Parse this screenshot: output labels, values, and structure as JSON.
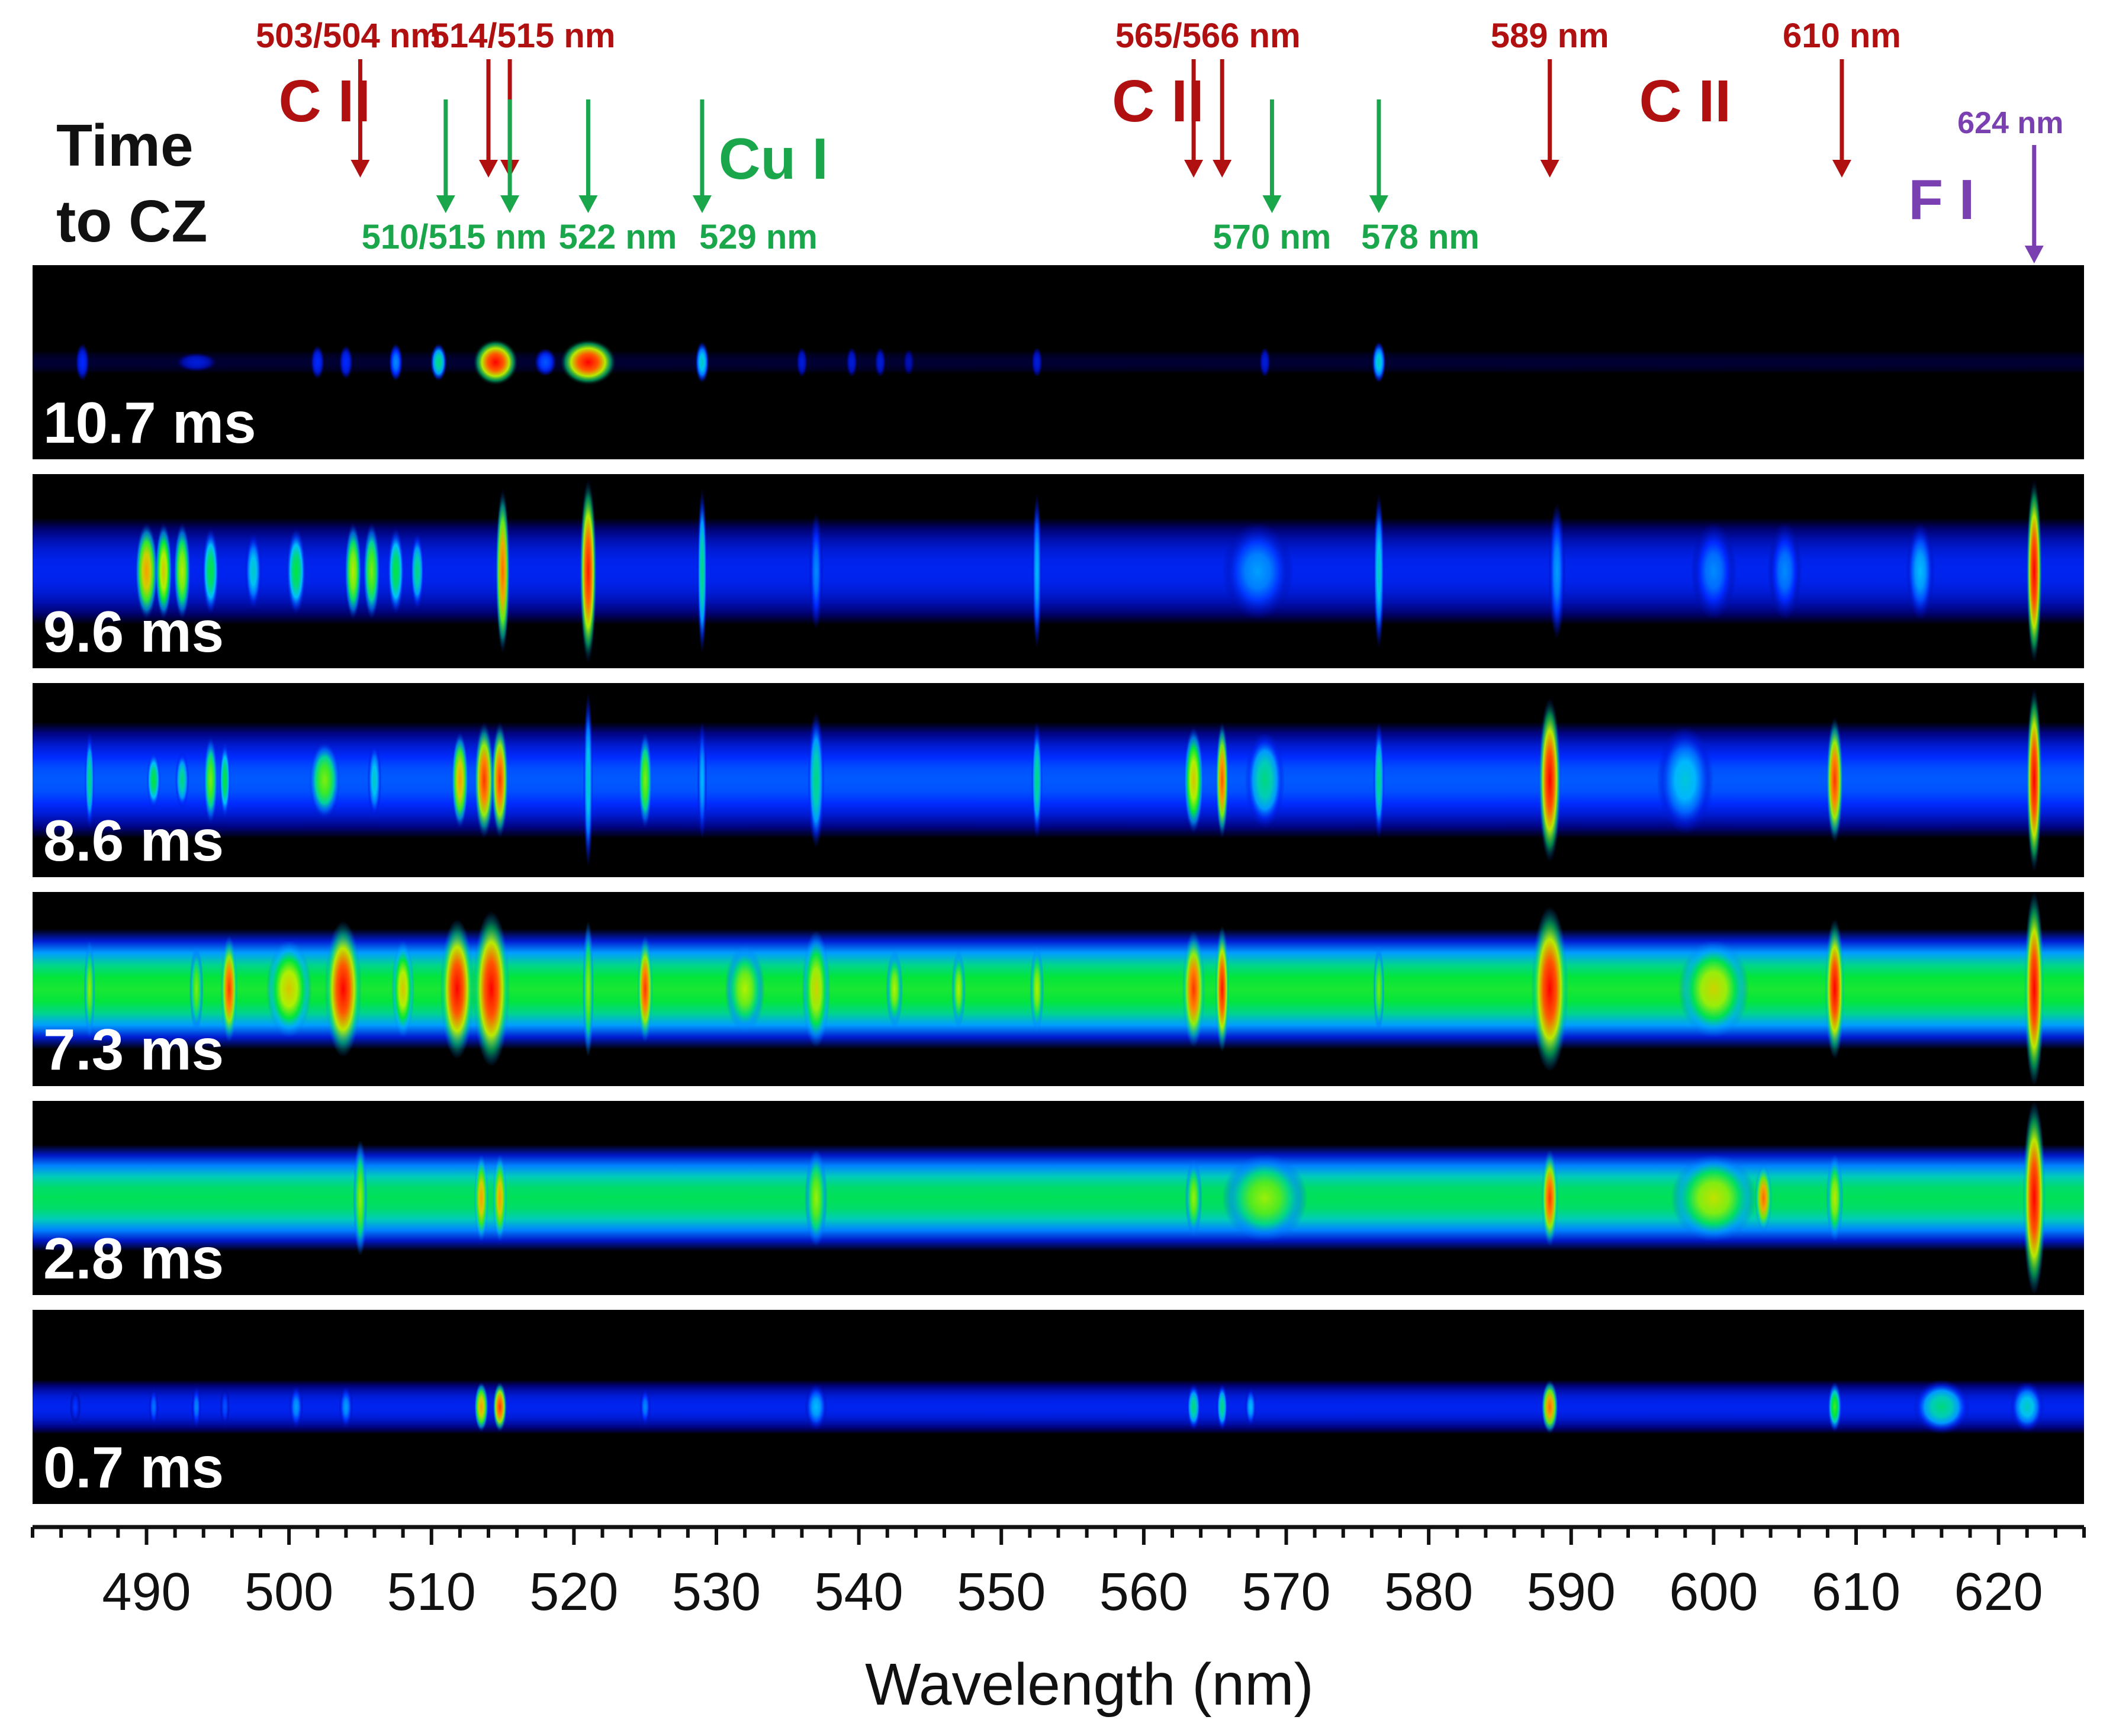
{
  "chart_data": {
    "type": "heatmap",
    "title": "",
    "ylabel_lines": [
      "Time",
      "to CZ"
    ],
    "xlabel": "Wavelength (nm)",
    "xlim": [
      482,
      626
    ],
    "xticks_major": [
      490,
      500,
      510,
      520,
      530,
      540,
      550,
      560,
      570,
      580,
      590,
      600,
      610,
      620
    ],
    "xticks_minor_step": 2,
    "colors": {
      "background": "#000000",
      "red_label": "#b01010",
      "green_label": "#1aa64a",
      "purple_label": "#7a3fb0"
    },
    "species_labels": [
      {
        "text": "C II",
        "color": "red",
        "wl": 502.5
      },
      {
        "text": "Cu I",
        "color": "green",
        "wl": 534
      },
      {
        "text": "C II",
        "color": "red",
        "wl": 561
      },
      {
        "text": "C II",
        "color": "red",
        "wl": 598
      },
      {
        "text": "F I",
        "color": "purple",
        "wl": 616
      }
    ],
    "line_annotations": [
      {
        "label": "503/504 nm",
        "color": "red",
        "arrows_wl": [
          505
        ],
        "position": "top"
      },
      {
        "label": "514/515 nm",
        "color": "red",
        "arrows_wl": [
          514,
          515.5
        ],
        "position": "top"
      },
      {
        "label": "565/566 nm",
        "color": "red",
        "arrows_wl": [
          563.5,
          565.5
        ],
        "position": "top"
      },
      {
        "label": "589 nm",
        "color": "red",
        "arrows_wl": [
          588.5
        ],
        "position": "top"
      },
      {
        "label": "610 nm",
        "color": "red",
        "arrows_wl": [
          609
        ],
        "position": "top"
      },
      {
        "label": "624 nm",
        "color": "purple",
        "arrows_wl": [
          622.5
        ],
        "position": "top"
      },
      {
        "label": "510/515 nm",
        "color": "green",
        "arrows_wl": [
          511,
          515.5
        ],
        "position": "bottom"
      },
      {
        "label": "522 nm",
        "color": "green",
        "arrows_wl": [
          521
        ],
        "position": "bottom"
      },
      {
        "label": "529 nm",
        "color": "green",
        "arrows_wl": [
          529
        ],
        "position": "bottom"
      },
      {
        "label": "570 nm",
        "color": "green",
        "arrows_wl": [
          569
        ],
        "position": "bottom"
      },
      {
        "label": "578 nm",
        "color": "green",
        "arrows_wl": [
          576.5
        ],
        "position": "bottom"
      }
    ],
    "panels": [
      {
        "time": "10.7 ms",
        "background_intensity": 0.05,
        "band_width": 0.12,
        "blobs": [
          {
            "wl": 514.5,
            "i": 1.0,
            "w": 1.6,
            "h": 0.24
          },
          {
            "wl": 521.0,
            "i": 1.0,
            "w": 2.0,
            "h": 0.24
          },
          {
            "wl": 510.5,
            "i": 0.55,
            "w": 0.6,
            "h": 0.2
          },
          {
            "wl": 529.0,
            "i": 0.5,
            "w": 0.5,
            "h": 0.22
          },
          {
            "wl": 485.5,
            "i": 0.3,
            "w": 0.5,
            "h": 0.2
          },
          {
            "wl": 493.5,
            "i": 0.25,
            "w": 1.5,
            "h": 0.1
          },
          {
            "wl": 502.0,
            "i": 0.3,
            "w": 0.5,
            "h": 0.18
          },
          {
            "wl": 504.0,
            "i": 0.3,
            "w": 0.5,
            "h": 0.18
          },
          {
            "wl": 507.5,
            "i": 0.4,
            "w": 0.5,
            "h": 0.2
          },
          {
            "wl": 518.0,
            "i": 0.35,
            "w": 0.8,
            "h": 0.15
          },
          {
            "wl": 536.0,
            "i": 0.25,
            "w": 0.4,
            "h": 0.16
          },
          {
            "wl": 539.5,
            "i": 0.25,
            "w": 0.4,
            "h": 0.16
          },
          {
            "wl": 541.5,
            "i": 0.25,
            "w": 0.4,
            "h": 0.16
          },
          {
            "wl": 543.5,
            "i": 0.2,
            "w": 0.4,
            "h": 0.14
          },
          {
            "wl": 552.5,
            "i": 0.25,
            "w": 0.4,
            "h": 0.16
          },
          {
            "wl": 568.5,
            "i": 0.25,
            "w": 0.4,
            "h": 0.16
          },
          {
            "wl": 576.5,
            "i": 0.5,
            "w": 0.5,
            "h": 0.22
          }
        ]
      },
      {
        "time": "9.6 ms",
        "background_intensity": 0.28,
        "band_width": 0.55,
        "blobs": [
          {
            "wl": 490.0,
            "i": 0.85,
            "w": 0.8,
            "h": 0.5
          },
          {
            "wl": 491.2,
            "i": 0.8,
            "w": 0.6,
            "h": 0.5
          },
          {
            "wl": 492.5,
            "i": 0.75,
            "w": 0.6,
            "h": 0.5
          },
          {
            "wl": 494.5,
            "i": 0.6,
            "w": 0.6,
            "h": 0.45
          },
          {
            "wl": 497.5,
            "i": 0.5,
            "w": 0.6,
            "h": 0.4
          },
          {
            "wl": 500.5,
            "i": 0.6,
            "w": 0.7,
            "h": 0.45
          },
          {
            "wl": 504.5,
            "i": 0.75,
            "w": 0.6,
            "h": 0.5
          },
          {
            "wl": 505.8,
            "i": 0.7,
            "w": 0.6,
            "h": 0.5
          },
          {
            "wl": 507.5,
            "i": 0.6,
            "w": 0.6,
            "h": 0.45
          },
          {
            "wl": 509.0,
            "i": 0.55,
            "w": 0.5,
            "h": 0.4
          },
          {
            "wl": 515.0,
            "i": 0.9,
            "w": 0.5,
            "h": 0.85
          },
          {
            "wl": 521.0,
            "i": 0.98,
            "w": 0.6,
            "h": 0.95
          },
          {
            "wl": 529.0,
            "i": 0.55,
            "w": 0.35,
            "h": 0.85
          },
          {
            "wl": 537.0,
            "i": 0.4,
            "w": 0.5,
            "h": 0.6
          },
          {
            "wl": 552.5,
            "i": 0.45,
            "w": 0.35,
            "h": 0.8
          },
          {
            "wl": 568.0,
            "i": 0.42,
            "w": 2.5,
            "h": 0.5
          },
          {
            "wl": 576.5,
            "i": 0.5,
            "w": 0.4,
            "h": 0.8
          },
          {
            "wl": 589.0,
            "i": 0.42,
            "w": 0.6,
            "h": 0.7
          },
          {
            "wl": 600.0,
            "i": 0.4,
            "w": 1.6,
            "h": 0.5
          },
          {
            "wl": 605.0,
            "i": 0.4,
            "w": 1.2,
            "h": 0.5
          },
          {
            "wl": 614.5,
            "i": 0.45,
            "w": 1.0,
            "h": 0.5
          },
          {
            "wl": 622.5,
            "i": 1.0,
            "w": 0.55,
            "h": 0.95
          }
        ]
      },
      {
        "time": "8.6 ms",
        "background_intensity": 0.35,
        "band_width": 0.6,
        "blobs": [
          {
            "wl": 486.0,
            "i": 0.55,
            "w": 0.35,
            "h": 0.5
          },
          {
            "wl": 490.5,
            "i": 0.6,
            "w": 0.5,
            "h": 0.3
          },
          {
            "wl": 492.5,
            "i": 0.55,
            "w": 0.5,
            "h": 0.3
          },
          {
            "wl": 494.5,
            "i": 0.7,
            "w": 0.5,
            "h": 0.45
          },
          {
            "wl": 495.5,
            "i": 0.6,
            "w": 0.4,
            "h": 0.4
          },
          {
            "wl": 502.5,
            "i": 0.7,
            "w": 1.1,
            "h": 0.4
          },
          {
            "wl": 506.0,
            "i": 0.5,
            "w": 0.5,
            "h": 0.4
          },
          {
            "wl": 512.0,
            "i": 0.85,
            "w": 0.6,
            "h": 0.5
          },
          {
            "wl": 513.7,
            "i": 0.95,
            "w": 0.7,
            "h": 0.6
          },
          {
            "wl": 514.8,
            "i": 0.95,
            "w": 0.6,
            "h": 0.6
          },
          {
            "wl": 521.0,
            "i": 0.5,
            "w": 0.35,
            "h": 0.9
          },
          {
            "wl": 525.0,
            "i": 0.7,
            "w": 0.5,
            "h": 0.5
          },
          {
            "wl": 529.0,
            "i": 0.45,
            "w": 0.35,
            "h": 0.6
          },
          {
            "wl": 537.0,
            "i": 0.55,
            "w": 0.6,
            "h": 0.7
          },
          {
            "wl": 552.5,
            "i": 0.55,
            "w": 0.4,
            "h": 0.6
          },
          {
            "wl": 563.5,
            "i": 0.8,
            "w": 0.7,
            "h": 0.55
          },
          {
            "wl": 565.5,
            "i": 0.92,
            "w": 0.45,
            "h": 0.6
          },
          {
            "wl": 568.5,
            "i": 0.55,
            "w": 1.4,
            "h": 0.5
          },
          {
            "wl": 576.5,
            "i": 0.55,
            "w": 0.4,
            "h": 0.6
          },
          {
            "wl": 588.5,
            "i": 1.0,
            "w": 0.8,
            "h": 0.85
          },
          {
            "wl": 598.0,
            "i": 0.48,
            "w": 2.0,
            "h": 0.55
          },
          {
            "wl": 608.5,
            "i": 0.95,
            "w": 0.6,
            "h": 0.65
          },
          {
            "wl": 622.5,
            "i": 1.0,
            "w": 0.55,
            "h": 0.95
          }
        ]
      },
      {
        "time": "7.3 ms",
        "background_intensity": 0.62,
        "band_width": 0.62,
        "blobs": [
          {
            "wl": 486.0,
            "i": 0.72,
            "w": 0.4,
            "h": 0.5
          },
          {
            "wl": 493.5,
            "i": 0.7,
            "w": 0.5,
            "h": 0.45
          },
          {
            "wl": 495.8,
            "i": 0.95,
            "w": 0.6,
            "h": 0.55
          },
          {
            "wl": 500.0,
            "i": 0.8,
            "w": 1.6,
            "h": 0.5
          },
          {
            "wl": 503.8,
            "i": 1.0,
            "w": 1.3,
            "h": 0.7
          },
          {
            "wl": 508.0,
            "i": 0.8,
            "w": 0.8,
            "h": 0.5
          },
          {
            "wl": 511.8,
            "i": 1.0,
            "w": 1.2,
            "h": 0.72
          },
          {
            "wl": 514.2,
            "i": 1.0,
            "w": 1.3,
            "h": 0.8
          },
          {
            "wl": 521.0,
            "i": 0.72,
            "w": 0.4,
            "h": 0.7
          },
          {
            "wl": 525.0,
            "i": 0.95,
            "w": 0.55,
            "h": 0.55
          },
          {
            "wl": 532.0,
            "i": 0.74,
            "w": 1.4,
            "h": 0.45
          },
          {
            "wl": 537.0,
            "i": 0.78,
            "w": 1.0,
            "h": 0.6
          },
          {
            "wl": 542.5,
            "i": 0.74,
            "w": 0.6,
            "h": 0.4
          },
          {
            "wl": 547.0,
            "i": 0.74,
            "w": 0.5,
            "h": 0.4
          },
          {
            "wl": 552.5,
            "i": 0.74,
            "w": 0.5,
            "h": 0.45
          },
          {
            "wl": 563.5,
            "i": 0.95,
            "w": 0.8,
            "h": 0.6
          },
          {
            "wl": 565.5,
            "i": 0.98,
            "w": 0.5,
            "h": 0.65
          },
          {
            "wl": 576.5,
            "i": 0.7,
            "w": 0.4,
            "h": 0.45
          },
          {
            "wl": 588.5,
            "i": 1.0,
            "w": 1.3,
            "h": 0.85
          },
          {
            "wl": 600.0,
            "i": 0.78,
            "w": 2.5,
            "h": 0.5
          },
          {
            "wl": 608.5,
            "i": 1.0,
            "w": 0.7,
            "h": 0.72
          },
          {
            "wl": 622.5,
            "i": 1.0,
            "w": 0.7,
            "h": 1.0
          }
        ]
      },
      {
        "time": "2.8 ms",
        "background_intensity": 0.58,
        "band_width": 0.55,
        "blobs": [
          {
            "wl": 505.0,
            "i": 0.72,
            "w": 0.5,
            "h": 0.6
          },
          {
            "wl": 513.5,
            "i": 0.85,
            "w": 0.5,
            "h": 0.45
          },
          {
            "wl": 514.8,
            "i": 0.85,
            "w": 0.5,
            "h": 0.45
          },
          {
            "wl": 537.0,
            "i": 0.72,
            "w": 0.8,
            "h": 0.5
          },
          {
            "wl": 563.5,
            "i": 0.72,
            "w": 0.6,
            "h": 0.4
          },
          {
            "wl": 568.5,
            "i": 0.72,
            "w": 3.0,
            "h": 0.45
          },
          {
            "wl": 588.5,
            "i": 0.95,
            "w": 0.6,
            "h": 0.5
          },
          {
            "wl": 600.0,
            "i": 0.76,
            "w": 3.0,
            "h": 0.45
          },
          {
            "wl": 603.5,
            "i": 0.9,
            "w": 0.6,
            "h": 0.35
          },
          {
            "wl": 608.5,
            "i": 0.75,
            "w": 0.6,
            "h": 0.45
          },
          {
            "wl": 622.5,
            "i": 1.0,
            "w": 0.8,
            "h": 1.0
          }
        ]
      },
      {
        "time": "0.7 ms",
        "background_intensity": 0.28,
        "band_width": 0.28,
        "blobs": [
          {
            "wl": 485.0,
            "i": 0.32,
            "w": 0.4,
            "h": 0.18
          },
          {
            "wl": 490.5,
            "i": 0.38,
            "w": 0.35,
            "h": 0.2
          },
          {
            "wl": 493.5,
            "i": 0.4,
            "w": 0.35,
            "h": 0.22
          },
          {
            "wl": 495.5,
            "i": 0.35,
            "w": 0.35,
            "h": 0.2
          },
          {
            "wl": 500.5,
            "i": 0.42,
            "w": 0.5,
            "h": 0.22
          },
          {
            "wl": 504.0,
            "i": 0.42,
            "w": 0.5,
            "h": 0.22
          },
          {
            "wl": 513.5,
            "i": 0.85,
            "w": 0.5,
            "h": 0.26
          },
          {
            "wl": 514.8,
            "i": 0.95,
            "w": 0.5,
            "h": 0.26
          },
          {
            "wl": 525.0,
            "i": 0.4,
            "w": 0.4,
            "h": 0.2
          },
          {
            "wl": 537.0,
            "i": 0.45,
            "w": 0.8,
            "h": 0.24
          },
          {
            "wl": 563.5,
            "i": 0.55,
            "w": 0.5,
            "h": 0.24
          },
          {
            "wl": 565.5,
            "i": 0.55,
            "w": 0.4,
            "h": 0.24
          },
          {
            "wl": 567.5,
            "i": 0.45,
            "w": 0.4,
            "h": 0.2
          },
          {
            "wl": 588.5,
            "i": 0.9,
            "w": 0.6,
            "h": 0.28
          },
          {
            "wl": 608.5,
            "i": 0.65,
            "w": 0.5,
            "h": 0.26
          },
          {
            "wl": 616.0,
            "i": 0.55,
            "w": 2.0,
            "h": 0.28
          },
          {
            "wl": 622.0,
            "i": 0.5,
            "w": 1.2,
            "h": 0.26
          }
        ]
      }
    ]
  }
}
